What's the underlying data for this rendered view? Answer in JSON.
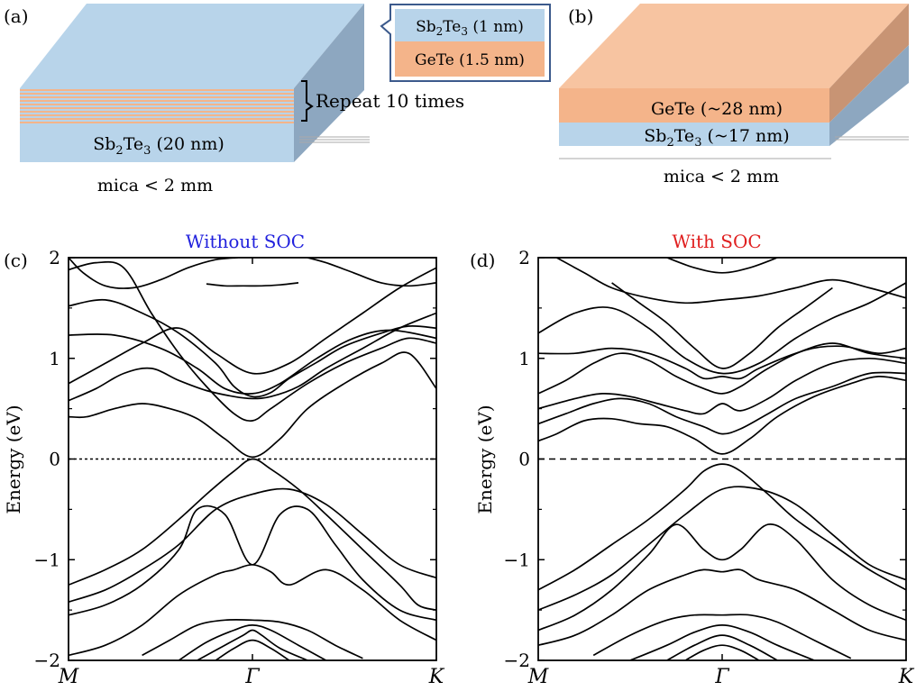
{
  "panels": {
    "a": {
      "label": "(a)",
      "callout_top": {
        "base": "Sb",
        "sub1": "2",
        "mid": "Te",
        "sub2": "3",
        "tail": " (1 nm)"
      },
      "callout_bottom": "GeTe (1.5 nm)",
      "repeat_text": "Repeat 10 times",
      "bottom_layer": {
        "base": "Sb",
        "sub1": "2",
        "mid": "Te",
        "sub2": "3",
        "tail": " (20 nm)"
      },
      "substrate": "mica < 2 mm"
    },
    "b": {
      "label": "(b)",
      "top_layer": "GeTe (~28 nm)",
      "bottom_layer": {
        "base": "Sb",
        "sub1": "2",
        "mid": "Te",
        "sub2": "3",
        "tail": " (~17 nm)"
      },
      "substrate": "mica < 2 mm"
    },
    "c": {
      "label": "(c)",
      "title": "Without SOC"
    },
    "d": {
      "label": "(d)",
      "title": "With SOC"
    }
  },
  "colors": {
    "sb2te3": "#b8d4ea",
    "sb2te3_side": "#8da7c0",
    "gete": "#f4b48a",
    "gete_side": "#c89474",
    "top_face_a": "#b8d4ea",
    "top_face_b": "#f7c4a1",
    "callout_border": "#3c5a8c",
    "title_c": "#2222dd",
    "title_d": "#e02020",
    "band": "#000000"
  },
  "chart_data": [
    {
      "type": "line",
      "title": "Without SOC",
      "ylabel": "Energy (eV)",
      "xticks": [
        "M",
        "Γ",
        "K"
      ],
      "x_positions": [
        0,
        1,
        2
      ],
      "ylim": [
        -2,
        2
      ],
      "yticks": [
        "−2",
        "−1",
        "0",
        "1",
        "2"
      ],
      "ytick_values": [
        -2,
        -1,
        0,
        1,
        2
      ],
      "fermi_level": 0,
      "series": [
        {
          "x": [
            0,
            0.15,
            0.3,
            0.45,
            0.6,
            0.75,
            0.9,
            1.0,
            1.1,
            1.3,
            1.5,
            1.7,
            1.85,
            2.0
          ],
          "y": [
            1.88,
            1.95,
            1.9,
            1.45,
            1.05,
            0.72,
            0.45,
            0.38,
            0.5,
            0.75,
            0.95,
            1.1,
            1.2,
            1.15
          ]
        },
        {
          "x": [
            0,
            0.2,
            0.4,
            0.6,
            0.8,
            0.9,
            1.0,
            1.1,
            1.2,
            1.35,
            1.5,
            1.7,
            1.85,
            2.0
          ],
          "y": [
            1.52,
            1.58,
            1.45,
            1.25,
            0.95,
            0.72,
            0.62,
            0.66,
            0.8,
            0.96,
            1.12,
            1.25,
            1.32,
            1.3
          ]
        },
        {
          "x": [
            0,
            0.25,
            0.5,
            0.7,
            0.85,
            1.0,
            1.15,
            1.35,
            1.55,
            1.75,
            2.0
          ],
          "y": [
            1.23,
            1.23,
            1.1,
            0.9,
            0.7,
            0.65,
            0.75,
            1.0,
            1.2,
            1.28,
            1.2
          ]
        },
        {
          "x": [
            0,
            0.1,
            0.25,
            0.4,
            0.55,
            0.7,
            0.85,
            1.0,
            1.15,
            1.3,
            1.5,
            1.7,
            1.85,
            2.0
          ],
          "y": [
            0.42,
            0.42,
            0.5,
            0.55,
            0.5,
            0.4,
            0.2,
            0.02,
            0.2,
            0.5,
            0.75,
            0.95,
            1.05,
            0.7
          ]
        },
        {
          "x": [
            0,
            0.15,
            0.3,
            0.45,
            0.6,
            0.75,
            0.9,
            1.0,
            1.1,
            1.25,
            1.4,
            1.6,
            1.8,
            2.0
          ],
          "y": [
            0.58,
            0.7,
            0.85,
            0.9,
            0.78,
            0.68,
            0.62,
            0.6,
            0.62,
            0.72,
            0.9,
            1.1,
            1.3,
            1.45
          ]
        },
        {
          "x": [
            0,
            0.2,
            0.4,
            0.6,
            0.8,
            1.0,
            1.2,
            1.4,
            1.6,
            1.8,
            2.0
          ],
          "y": [
            0.75,
            0.95,
            1.15,
            1.3,
            1.05,
            0.85,
            0.95,
            1.2,
            1.45,
            1.7,
            1.9
          ]
        },
        {
          "x": [
            0.0,
            0.08,
            0.2,
            0.35,
            0.5,
            0.65,
            0.8,
            0.92
          ],
          "y": [
            2.0,
            1.85,
            1.72,
            1.7,
            1.78,
            1.9,
            1.98,
            2.0
          ]
        },
        {
          "x": [
            0.75,
            0.85,
            0.95,
            1.05,
            1.15,
            1.25
          ],
          "y": [
            1.74,
            1.72,
            1.72,
            1.72,
            1.73,
            1.75
          ]
        },
        {
          "x": [
            1.3,
            1.4,
            1.55,
            1.7,
            1.85,
            2.0
          ],
          "y": [
            2.0,
            1.95,
            1.85,
            1.75,
            1.72,
            1.75
          ]
        },
        {
          "x": [
            0,
            0.2,
            0.4,
            0.6,
            0.75,
            0.9,
            1.0,
            1.1,
            1.25,
            1.4,
            1.6,
            1.8,
            1.9,
            2.0
          ],
          "y": [
            -1.25,
            -1.1,
            -0.9,
            -0.6,
            -0.35,
            -0.12,
            0.0,
            -0.1,
            -0.3,
            -0.55,
            -0.9,
            -1.25,
            -1.45,
            -1.5
          ]
        },
        {
          "x": [
            0,
            0.2,
            0.4,
            0.6,
            0.8,
            1.0,
            1.2,
            1.4,
            1.6,
            1.8,
            2.0
          ],
          "y": [
            -1.42,
            -1.3,
            -1.1,
            -0.85,
            -0.5,
            -0.35,
            -0.3,
            -0.45,
            -0.75,
            -1.05,
            -1.18
          ]
        },
        {
          "x": [
            0,
            0.2,
            0.4,
            0.6,
            0.7,
            0.85,
            1.0,
            1.15,
            1.3,
            1.45,
            1.6,
            1.8,
            2.0
          ],
          "y": [
            -1.55,
            -1.45,
            -1.25,
            -0.9,
            -0.5,
            -0.55,
            -1.05,
            -0.55,
            -0.5,
            -0.85,
            -1.2,
            -1.5,
            -1.6
          ]
        },
        {
          "x": [
            0,
            0.2,
            0.4,
            0.6,
            0.8,
            0.9,
            1.0,
            1.1,
            1.2,
            1.4,
            1.6,
            1.8,
            2.0
          ],
          "y": [
            -1.95,
            -1.85,
            -1.65,
            -1.35,
            -1.15,
            -1.1,
            -1.05,
            -1.12,
            -1.25,
            -1.1,
            -1.3,
            -1.6,
            -1.8
          ]
        },
        {
          "x": [
            0.4,
            0.55,
            0.7,
            0.85,
            1.0,
            1.15,
            1.3,
            1.45,
            1.6
          ],
          "y": [
            -1.95,
            -1.8,
            -1.65,
            -1.6,
            -1.6,
            -1.62,
            -1.7,
            -1.85,
            -1.98
          ]
        },
        {
          "x": [
            0.6,
            0.75,
            0.9,
            1.0,
            1.1,
            1.25,
            1.4
          ],
          "y": [
            -2.0,
            -1.82,
            -1.7,
            -1.65,
            -1.7,
            -1.85,
            -2.0
          ]
        },
        {
          "x": [
            0.7,
            0.85,
            0.95,
            1.0,
            1.05,
            1.15,
            1.3
          ],
          "y": [
            -2.0,
            -1.85,
            -1.75,
            -1.7,
            -1.75,
            -1.88,
            -2.0
          ]
        },
        {
          "x": [
            0.8,
            0.9,
            1.0,
            1.1,
            1.2
          ],
          "y": [
            -2.0,
            -1.88,
            -1.8,
            -1.88,
            -2.0
          ]
        }
      ]
    },
    {
      "type": "line",
      "title": "With SOC",
      "ylabel": "Energy (eV)",
      "xticks": [
        "M",
        "Γ",
        "K"
      ],
      "x_positions": [
        0,
        1,
        2
      ],
      "ylim": [
        -2,
        2
      ],
      "yticks": [
        "−2",
        "−1",
        "0",
        "1",
        "2"
      ],
      "ytick_values": [
        -2,
        -1,
        0,
        1,
        2
      ],
      "fermi_level": 0,
      "series": [
        {
          "x": [
            0,
            0.1,
            0.25,
            0.4,
            0.55,
            0.7,
            0.85,
            1.0,
            1.15,
            1.3,
            1.5,
            1.7,
            1.85,
            2.0
          ],
          "y": [
            0.18,
            0.25,
            0.38,
            0.4,
            0.35,
            0.32,
            0.2,
            0.05,
            0.2,
            0.42,
            0.62,
            0.75,
            0.82,
            0.78
          ]
        },
        {
          "x": [
            0,
            0.15,
            0.3,
            0.45,
            0.6,
            0.75,
            0.9,
            1.0,
            1.1,
            1.25,
            1.4,
            1.6,
            1.8,
            2.0
          ],
          "y": [
            0.35,
            0.45,
            0.55,
            0.6,
            0.55,
            0.42,
            0.32,
            0.25,
            0.3,
            0.45,
            0.6,
            0.72,
            0.85,
            0.85
          ]
        },
        {
          "x": [
            0,
            0.2,
            0.35,
            0.5,
            0.65,
            0.8,
            0.9,
            1.0,
            1.1,
            1.25,
            1.4,
            1.6,
            1.8,
            2.0
          ],
          "y": [
            0.5,
            0.6,
            0.65,
            0.62,
            0.55,
            0.48,
            0.45,
            0.55,
            0.48,
            0.6,
            0.78,
            0.95,
            1.0,
            0.95
          ]
        },
        {
          "x": [
            0,
            0.15,
            0.3,
            0.45,
            0.6,
            0.75,
            0.9,
            1.0,
            1.1,
            1.25,
            1.45,
            1.65,
            1.85,
            2.0
          ],
          "y": [
            0.65,
            0.78,
            0.95,
            1.05,
            0.98,
            0.82,
            0.7,
            0.65,
            0.72,
            0.9,
            1.08,
            1.12,
            1.05,
            1.1
          ]
        },
        {
          "x": [
            0,
            0.2,
            0.4,
            0.6,
            0.8,
            0.9,
            1.0,
            1.1,
            1.2,
            1.4,
            1.6,
            1.8,
            2.0
          ],
          "y": [
            1.05,
            1.05,
            1.1,
            1.05,
            0.9,
            0.8,
            0.82,
            0.8,
            0.9,
            1.05,
            1.15,
            1.05,
            1.0
          ]
        },
        {
          "x": [
            0,
            0.2,
            0.4,
            0.6,
            0.8,
            1.0,
            1.2,
            1.4,
            1.6,
            1.8,
            2.0
          ],
          "y": [
            1.25,
            1.45,
            1.5,
            1.3,
            1.0,
            0.85,
            0.95,
            1.2,
            1.4,
            1.55,
            1.75
          ]
        },
        {
          "x": [
            0.4,
            0.55,
            0.7,
            0.85,
            1.0,
            1.15,
            1.3,
            1.45,
            1.6
          ],
          "y": [
            1.75,
            1.55,
            1.35,
            1.1,
            0.9,
            1.05,
            1.3,
            1.5,
            1.7
          ]
        },
        {
          "x": [
            0.1,
            0.25,
            0.4,
            0.6,
            0.8,
            1.0,
            1.2,
            1.4,
            1.6,
            1.8,
            2.0
          ],
          "y": [
            2.0,
            1.85,
            1.7,
            1.6,
            1.55,
            1.58,
            1.62,
            1.7,
            1.78,
            1.7,
            1.6
          ]
        },
        {
          "x": [
            0.7,
            0.85,
            1.0,
            1.15,
            1.3
          ],
          "y": [
            2.0,
            1.9,
            1.85,
            1.9,
            2.0
          ]
        },
        {
          "x": [
            0,
            0.2,
            0.4,
            0.6,
            0.8,
            0.9,
            1.0,
            1.1,
            1.25,
            1.4,
            1.6,
            1.8,
            2.0
          ],
          "y": [
            -1.3,
            -1.1,
            -0.85,
            -0.6,
            -0.3,
            -0.12,
            -0.05,
            -0.12,
            -0.35,
            -0.6,
            -0.85,
            -1.1,
            -1.3
          ]
        },
        {
          "x": [
            0,
            0.2,
            0.4,
            0.6,
            0.8,
            1.0,
            1.2,
            1.4,
            1.6,
            1.8,
            2.0
          ],
          "y": [
            -1.5,
            -1.35,
            -1.15,
            -0.85,
            -0.55,
            -0.3,
            -0.3,
            -0.45,
            -0.75,
            -1.05,
            -1.2
          ]
        },
        {
          "x": [
            0,
            0.2,
            0.4,
            0.6,
            0.75,
            0.9,
            1.0,
            1.1,
            1.25,
            1.4,
            1.6,
            1.8,
            2.0
          ],
          "y": [
            -1.7,
            -1.55,
            -1.3,
            -0.95,
            -0.65,
            -0.9,
            -1.0,
            -0.9,
            -0.65,
            -0.8,
            -1.2,
            -1.45,
            -1.6
          ]
        },
        {
          "x": [
            0,
            0.2,
            0.4,
            0.6,
            0.8,
            0.9,
            1.0,
            1.1,
            1.2,
            1.4,
            1.6,
            1.8,
            2.0
          ],
          "y": [
            -1.85,
            -1.75,
            -1.55,
            -1.3,
            -1.15,
            -1.1,
            -1.12,
            -1.1,
            -1.2,
            -1.3,
            -1.5,
            -1.7,
            -1.8
          ]
        },
        {
          "x": [
            0.3,
            0.5,
            0.7,
            0.85,
            1.0,
            1.15,
            1.3,
            1.5,
            1.7
          ],
          "y": [
            -1.95,
            -1.75,
            -1.6,
            -1.55,
            -1.55,
            -1.55,
            -1.62,
            -1.8,
            -1.98
          ]
        },
        {
          "x": [
            0.5,
            0.7,
            0.85,
            1.0,
            1.15,
            1.3,
            1.5
          ],
          "y": [
            -2.0,
            -1.85,
            -1.72,
            -1.65,
            -1.72,
            -1.85,
            -2.0
          ]
        },
        {
          "x": [
            0.7,
            0.85,
            1.0,
            1.15,
            1.3
          ],
          "y": [
            -2.0,
            -1.85,
            -1.75,
            -1.85,
            -2.0
          ]
        },
        {
          "x": [
            0.8,
            0.9,
            1.0,
            1.1,
            1.2
          ],
          "y": [
            -2.0,
            -1.9,
            -1.85,
            -1.9,
            -2.0
          ]
        }
      ]
    }
  ]
}
